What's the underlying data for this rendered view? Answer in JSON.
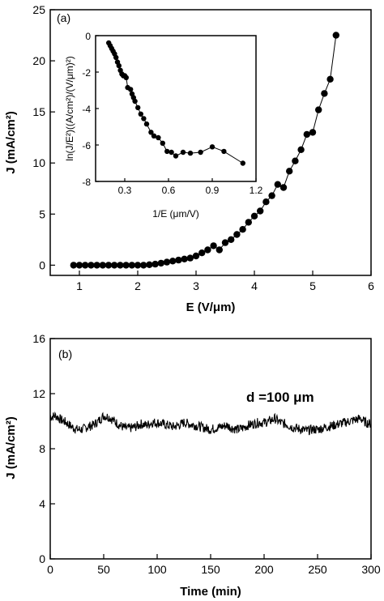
{
  "chart_data": [
    {
      "type": "scatter",
      "panel_label": "(a)",
      "xlabel": "E (V/μm)",
      "ylabel": "J (mA/cm²)",
      "xlim": [
        0.5,
        6
      ],
      "ylim": [
        -1,
        25
      ],
      "xticks": [
        1,
        2,
        3,
        4,
        5,
        6
      ],
      "yticks": [
        0,
        5,
        10,
        15,
        20,
        25
      ],
      "series": [
        {
          "line": true,
          "x": [
            0.9,
            1.0,
            1.1,
            1.2,
            1.3,
            1.4,
            1.5,
            1.6,
            1.7,
            1.8,
            1.9,
            2.0,
            2.1,
            2.2,
            2.3,
            2.4,
            2.5,
            2.6,
            2.7,
            2.8,
            2.9,
            3.0,
            3.1,
            3.2,
            3.3,
            3.4,
            3.5,
            3.6,
            3.7,
            3.8,
            3.9,
            4.0,
            4.1,
            4.2,
            4.3,
            4.4,
            4.5,
            4.6,
            4.7,
            4.8,
            4.9,
            5.0,
            5.1,
            5.2,
            5.3,
            5.4
          ],
          "y": [
            0.0,
            0.0,
            0.0,
            0.0,
            0.0,
            0.0,
            0.0,
            0.0,
            0.0,
            0.0,
            0.0,
            0.0,
            0.0,
            0.05,
            0.1,
            0.2,
            0.3,
            0.4,
            0.5,
            0.6,
            0.7,
            0.9,
            1.2,
            1.5,
            1.9,
            1.5,
            2.2,
            2.5,
            3.0,
            3.5,
            4.2,
            4.8,
            5.3,
            6.2,
            6.8,
            7.9,
            7.6,
            9.2,
            10.2,
            11.3,
            12.8,
            13.0,
            15.2,
            16.8,
            18.2,
            22.5
          ]
        }
      ]
    },
    {
      "type": "scatter",
      "inset": true,
      "xlabel": "1/E (μm/V)",
      "ylabel": "ln(J/E²)((A/cm²)/(V/μm)²)",
      "xlim": [
        0.1,
        1.2
      ],
      "ylim": [
        -8,
        0
      ],
      "xticks": [
        0.3,
        0.6,
        0.9,
        1.2
      ],
      "yticks": [
        0,
        -2,
        -4,
        -6,
        -8
      ],
      "series": [
        {
          "line": true,
          "x": [
            0.19,
            0.2,
            0.21,
            0.22,
            0.23,
            0.24,
            0.25,
            0.26,
            0.27,
            0.28,
            0.29,
            0.3,
            0.31,
            0.32,
            0.34,
            0.35,
            0.36,
            0.37,
            0.39,
            0.41,
            0.43,
            0.45,
            0.48,
            0.5,
            0.53,
            0.56,
            0.59,
            0.62,
            0.65,
            0.7,
            0.75,
            0.82,
            0.9,
            0.98,
            1.11
          ],
          "y": [
            -0.4,
            -0.55,
            -0.7,
            -0.85,
            -1.0,
            -1.2,
            -1.45,
            -1.65,
            -1.9,
            -2.1,
            -2.2,
            -2.2,
            -2.3,
            -2.85,
            -2.95,
            -3.2,
            -3.4,
            -3.6,
            -3.95,
            -4.3,
            -4.55,
            -4.85,
            -5.3,
            -5.5,
            -5.6,
            -5.9,
            -6.35,
            -6.4,
            -6.6,
            -6.4,
            -6.45,
            -6.4,
            -6.1,
            -6.35,
            -7.0
          ]
        }
      ]
    },
    {
      "type": "line",
      "panel_label": "(b)",
      "xlabel": "Time (min)",
      "ylabel": "J (mA/cm²)",
      "annotation": "d =100 μm",
      "xlim": [
        0,
        300
      ],
      "ylim": [
        0,
        16
      ],
      "xticks": [
        0,
        50,
        100,
        150,
        200,
        250,
        300
      ],
      "yticks": [
        0,
        4,
        8,
        12,
        16
      ],
      "series": [
        {
          "x": [
            0,
            5,
            10,
            15,
            20,
            25,
            30,
            35,
            40,
            45,
            50,
            55,
            60,
            65,
            70,
            75,
            80,
            85,
            90,
            95,
            100,
            105,
            110,
            115,
            120,
            125,
            130,
            135,
            140,
            145,
            150,
            155,
            160,
            165,
            170,
            175,
            180,
            185,
            190,
            195,
            200,
            205,
            210,
            215,
            220,
            225,
            230,
            235,
            240,
            245,
            250,
            255,
            260,
            265,
            270,
            275,
            280,
            285,
            290,
            295,
            300
          ],
          "y": [
            10.3,
            10.4,
            10.1,
            9.9,
            9.6,
            9.4,
            9.4,
            9.6,
            9.7,
            10.0,
            10.4,
            10.3,
            10.0,
            9.7,
            9.5,
            9.5,
            9.6,
            9.8,
            9.7,
            9.9,
            9.9,
            9.8,
            9.7,
            9.6,
            9.7,
            9.9,
            9.8,
            9.7,
            9.6,
            9.5,
            9.4,
            9.5,
            9.6,
            9.7,
            9.5,
            9.4,
            9.5,
            9.7,
            9.8,
            9.9,
            9.9,
            10.0,
            10.2,
            9.9,
            9.8,
            9.6,
            9.5,
            9.4,
            9.3,
            9.4,
            9.4,
            9.5,
            9.6,
            9.7,
            9.8,
            9.9,
            10.0,
            10.1,
            10.2,
            9.9,
            9.8
          ]
        }
      ]
    }
  ]
}
